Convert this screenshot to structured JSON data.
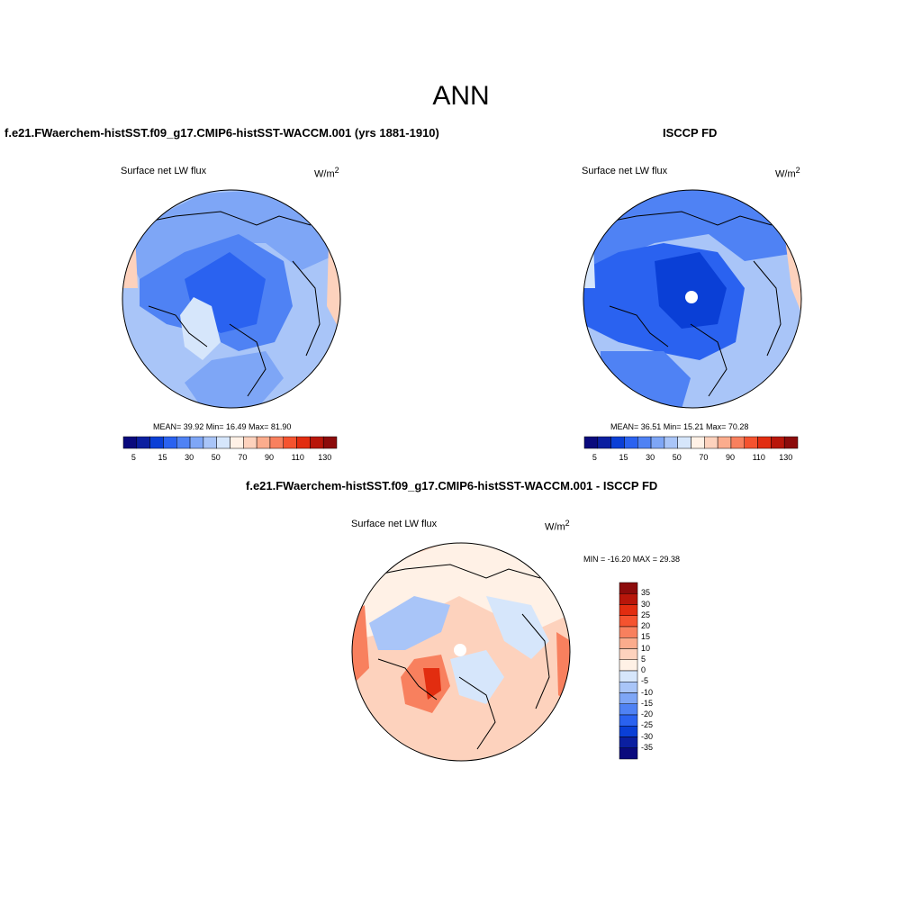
{
  "main_title": "ANN",
  "panels": {
    "model": {
      "title": "f.e21.FWaerchem-histSST.f09_g17.CMIP6-histSST-WACCM.001 (yrs 1881-1910)",
      "variable": "Surface net LW flux",
      "units": "W/m",
      "units_sup": "2",
      "stats": "MEAN=  39.92  Min=  16.49  Max=  81.90"
    },
    "obs": {
      "title": "ISCCP FD",
      "variable": "Surface net LW flux",
      "units": "W/m",
      "units_sup": "2",
      "stats": "MEAN=  36.51  Min=  15.21  Max=  70.28"
    },
    "diff": {
      "title": "f.e21.FWaerchem-histSST.f09_g17.CMIP6-histSST-WACCM.001 - ISCCP FD",
      "variable": "Surface net LW flux",
      "units": "W/m",
      "units_sup": "2",
      "stats": "MIN = -16.20 MAX =  29.38"
    }
  },
  "colorbar_abs": {
    "tick_labels": [
      "5",
      "15",
      "30",
      "50",
      "70",
      "90",
      "110",
      "130"
    ],
    "colors": [
      "#0a0a7d",
      "#0b1fa0",
      "#0a3fd6",
      "#2a62f0",
      "#4f82f4",
      "#7ea6f6",
      "#a9c5f8",
      "#d6e6fb",
      "#fff1e6",
      "#fdd2bd",
      "#fbac8d",
      "#f8805e",
      "#f5532f",
      "#e22d10",
      "#b8160a",
      "#8c0b0b"
    ]
  },
  "colorbar_diff": {
    "tick_labels": [
      "35",
      "30",
      "25",
      "20",
      "15",
      "10",
      "5",
      "0",
      "-5",
      "-10",
      "-15",
      "-20",
      "-25",
      "-30",
      "-35"
    ],
    "colors": [
      "#8c0b0b",
      "#b8160a",
      "#e22d10",
      "#f5532f",
      "#f8805e",
      "#fbac8d",
      "#fdd2bd",
      "#fff1e6",
      "#d6e6fb",
      "#a9c5f8",
      "#7ea6f6",
      "#4f82f4",
      "#2a62f0",
      "#0a3fd6",
      "#0b1fa0",
      "#0a0a7d"
    ]
  }
}
